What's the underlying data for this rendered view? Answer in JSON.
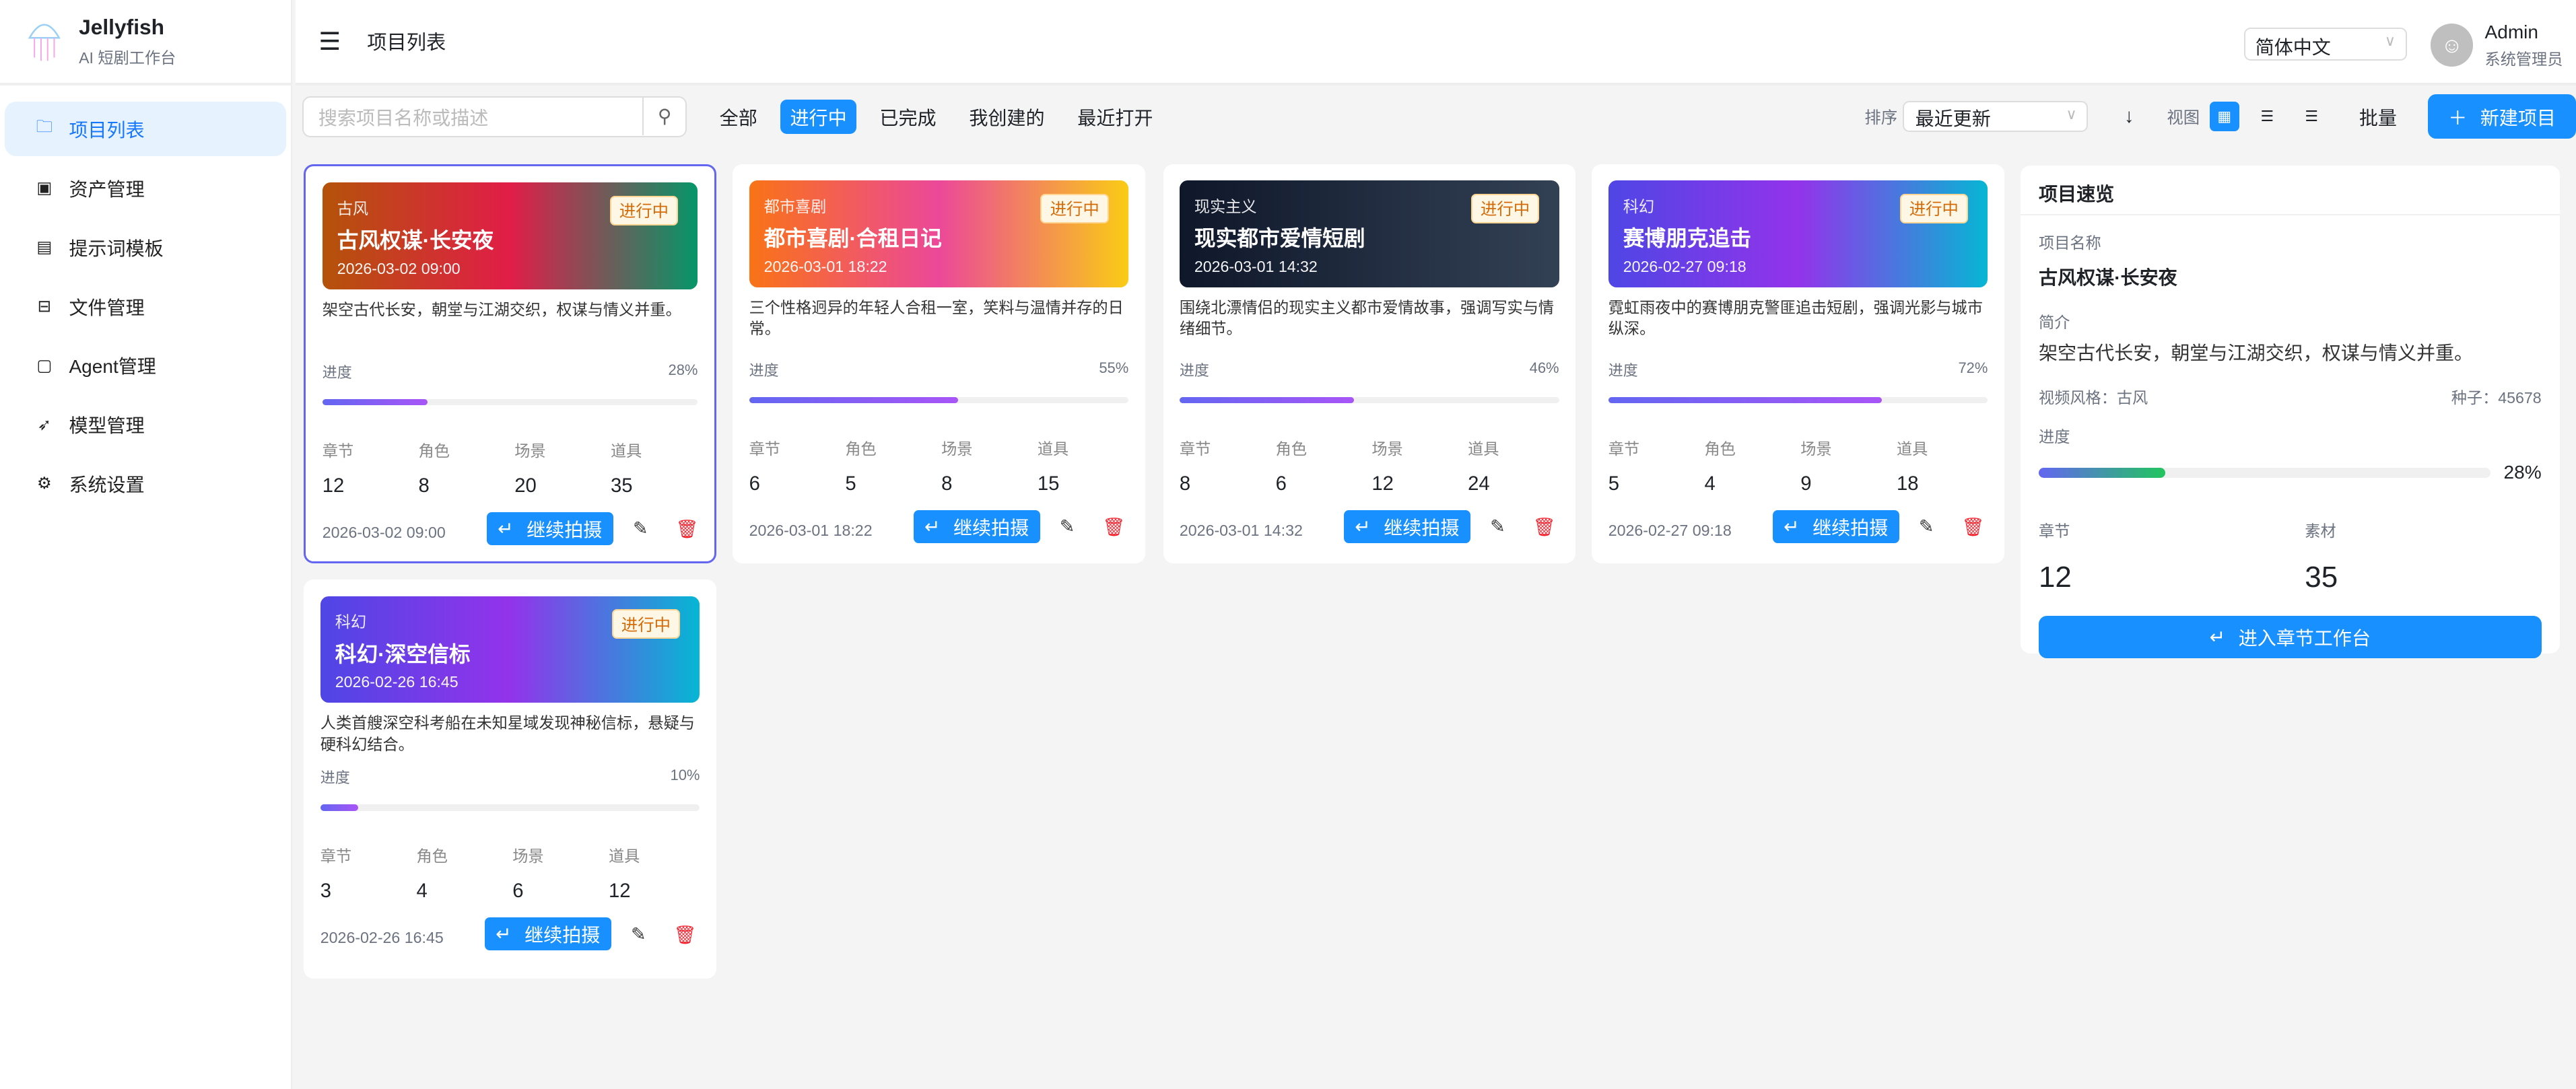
{
  "app": {
    "name": "Jellyfish",
    "subtitle": "AI 短剧工作台"
  },
  "sidebar": {
    "items": [
      {
        "label": "项目列表",
        "icon": "folder-icon",
        "active": true
      },
      {
        "label": "资产管理",
        "icon": "image-icon"
      },
      {
        "label": "提示词模板",
        "icon": "file-icon"
      },
      {
        "label": "文件管理",
        "icon": "inbox-icon"
      },
      {
        "label": "Agent管理",
        "icon": "robot-icon"
      },
      {
        "label": "模型管理",
        "icon": "rocket-icon"
      },
      {
        "label": "系统设置",
        "icon": "gear-icon"
      }
    ]
  },
  "header": {
    "title": "项目列表",
    "language": "简体中文",
    "user": {
      "name": "Admin",
      "role": "系统管理员"
    }
  },
  "toolbar": {
    "search_placeholder": "搜索项目名称或描述",
    "filters": [
      "全部",
      "进行中",
      "已完成",
      "我创建的",
      "最近打开"
    ],
    "active_filter": "进行中",
    "sort_label": "排序",
    "sort_value": "最近更新",
    "view_label": "视图",
    "batch": "批量",
    "new_project": "新建项目"
  },
  "labels": {
    "progress": "进度",
    "chapters": "章节",
    "roles": "角色",
    "scenes": "场景",
    "props": "道具",
    "continue": "继续拍摄"
  },
  "colors": {
    "primary": "#1890ff",
    "selected_border": "#6366f1",
    "status": "#d46b08"
  },
  "projects": [
    {
      "genre": "古风",
      "title": "古风权谋·长安夜",
      "date": "2026-03-02 09:00",
      "status": "进行中",
      "desc": "架空古代长安，朝堂与江湖交织，权谋与情义并重。",
      "progress": "28%",
      "chapters": "12",
      "roles": "8",
      "scenes": "20",
      "props": "35"
    },
    {
      "genre": "都市喜剧",
      "title": "都市喜剧·合租日记",
      "date": "2026-03-01 18:22",
      "status": "进行中",
      "desc": "三个性格迥异的年轻人合租一室，笑料与温情并存的日常。",
      "progress": "55%",
      "chapters": "6",
      "roles": "5",
      "scenes": "8",
      "props": "15"
    },
    {
      "genre": "现实主义",
      "title": "现实都市爱情短剧",
      "date": "2026-03-01 14:32",
      "status": "进行中",
      "desc": "围绕北漂情侣的现实主义都市爱情故事，强调写实与情绪细节。",
      "progress": "46%",
      "chapters": "8",
      "roles": "6",
      "scenes": "12",
      "props": "24"
    },
    {
      "genre": "科幻",
      "title": "赛博朋克追击",
      "date": "2026-02-27 09:18",
      "status": "进行中",
      "desc": "霓虹雨夜中的赛博朋克警匪追击短剧，强调光影与城市纵深。",
      "progress": "72%",
      "chapters": "5",
      "roles": "4",
      "scenes": "9",
      "props": "18"
    },
    {
      "genre": "科幻",
      "title": "科幻·深空信标",
      "date": "2026-02-26 16:45",
      "status": "进行中",
      "desc": "人类首艘深空科考船在未知星域发现神秘信标，悬疑与硬科幻结合。",
      "progress": "10%",
      "chapters": "3",
      "roles": "4",
      "scenes": "6",
      "props": "12"
    }
  ],
  "preview": {
    "title": "项目速览",
    "name_label": "项目名称",
    "name": "古风权谋·长安夜",
    "intro_label": "简介",
    "intro": "架空古代长安，朝堂与江湖交织，权谋与情义并重。",
    "style": "视频风格：古风",
    "seed": "种子：45678",
    "progress_label": "进度",
    "progress": "28%",
    "chapters_label": "章节",
    "chapters": "12",
    "assets_label": "素材",
    "assets": "35",
    "enter": "进入章节工作台"
  }
}
